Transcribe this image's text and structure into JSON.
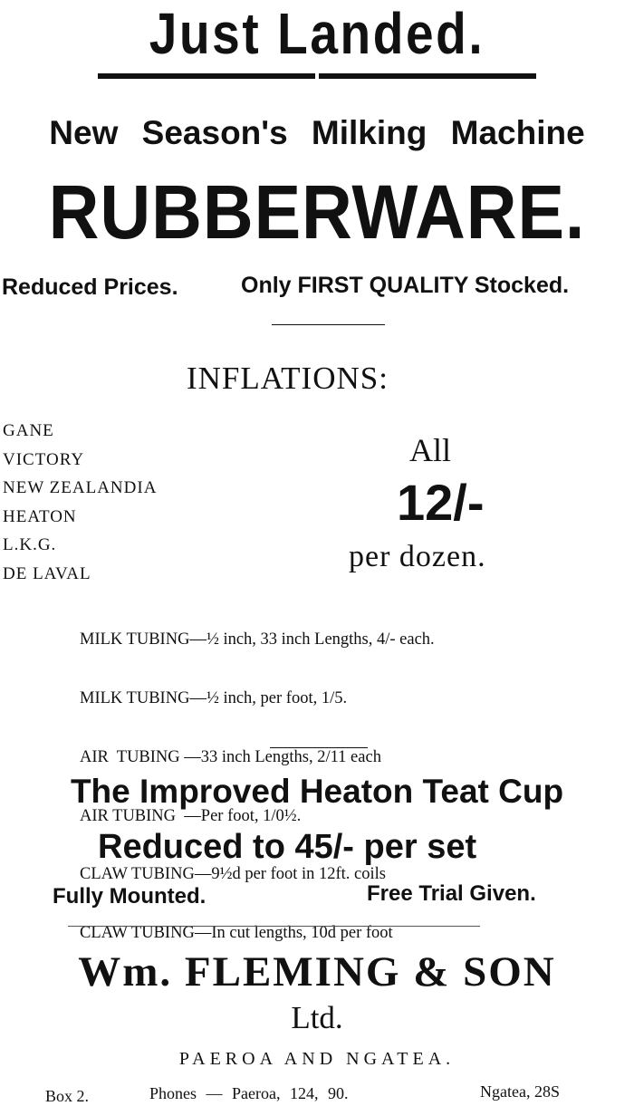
{
  "headline": "Just Landed.",
  "subheadline": "New Season's Milking Machine",
  "product": "RUBBERWARE.",
  "tagline": {
    "left": "Reduced Prices.",
    "right": "Only FIRST QUALITY Stocked."
  },
  "inflations": {
    "heading": "INFLATIONS:",
    "brands": [
      "GANE",
      "VICTORY",
      "NEW ZEALANDIA",
      "HEATON",
      "L.K.G.",
      "DE LAVAL"
    ],
    "price_prefix": "All",
    "price": "12/-",
    "price_suffix": "per dozen."
  },
  "tubing": [
    "MILK TUBING—½ inch, 33 inch Lengths, 4/- each.",
    "MILK TUBING—½ inch, per foot, 1/5.",
    "AIR  TUBING —33 inch Lengths, 2/11 each",
    "AIR TUBING  —Per foot, 1/0½.",
    "CLAW TUBING—9½d per foot in 12ft. coils",
    "CLAW TUBING—In cut lengths, 10d per foot"
  ],
  "teat_cup": {
    "title": "The Improved Heaton Teat Cup",
    "price_line": "Reduced to 45/- per set",
    "note_left": "Fully Mounted.",
    "note_right": "Free Trial Given."
  },
  "company": {
    "name": "Wm. FLEMING & SON",
    "suffix": "Ltd.",
    "locations": "PAEROA AND NGATEA.",
    "box": "Box 2.",
    "phones": "Phones — Paeroa, 124, 90.",
    "ngatea_phone": "Ngatea, 28S"
  }
}
